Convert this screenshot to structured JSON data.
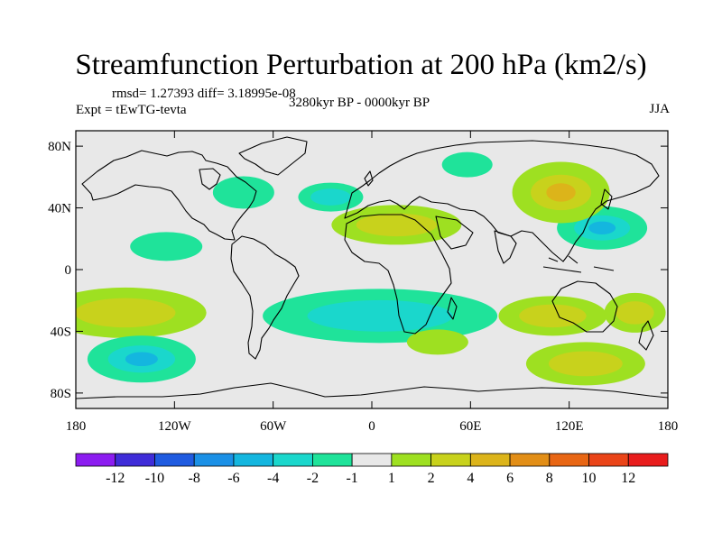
{
  "chart_data": {
    "type": "heatmap",
    "title": "Streamfunction Perturbation at 200 hPa (km2/s)",
    "stats_text": "rmsd= 1.27393  diff= 3.18995e-08",
    "left_label": "Expt = tEwTG-tevta",
    "center_label": "3280kyr BP - 0000kyr BP",
    "right_label": "JJA",
    "xlim": [
      -180,
      180
    ],
    "ylim": [
      -90,
      90
    ],
    "x_ticks": [
      {
        "value": -180,
        "label": "180"
      },
      {
        "value": -120,
        "label": "120W"
      },
      {
        "value": -60,
        "label": "60W"
      },
      {
        "value": 0,
        "label": "0"
      },
      {
        "value": 60,
        "label": "60E"
      },
      {
        "value": 120,
        "label": "120E"
      },
      {
        "value": 180,
        "label": "180"
      }
    ],
    "y_ticks": [
      {
        "value": 80,
        "label": "80N"
      },
      {
        "value": 40,
        "label": "40N"
      },
      {
        "value": 0,
        "label": "0"
      },
      {
        "value": -40,
        "label": "40S"
      },
      {
        "value": -80,
        "label": "80S"
      }
    ],
    "colorbar": {
      "labels": [
        "-12",
        "-10",
        "-8",
        "-6",
        "-4",
        "-2",
        "-1",
        "1",
        "2",
        "4",
        "6",
        "8",
        "10",
        "12"
      ],
      "colors": [
        "#8c1cf0",
        "#3f2cd8",
        "#1f5be0",
        "#1a90e6",
        "#14b6df",
        "#1ad7cc",
        "#1fe39a",
        "#e8e8e8",
        "#9ee021",
        "#c8d21c",
        "#dcb41a",
        "#e28e16",
        "#e86614",
        "#ea4418",
        "#e81c1c"
      ]
    },
    "anomalies": [
      {
        "lon": -78,
        "lat": 50,
        "value": -1.5
      },
      {
        "lon": -125,
        "lat": 15,
        "value": -1.5
      },
      {
        "lon": -25,
        "lat": 47,
        "value": -2
      },
      {
        "lon": 58,
        "lat": 68,
        "value": -1.5
      },
      {
        "lon": 140,
        "lat": 27,
        "value": -3
      },
      {
        "lon": 15,
        "lat": 29,
        "value": 2
      },
      {
        "lon": 115,
        "lat": 50,
        "value": 3
      },
      {
        "lon": -150,
        "lat": -28,
        "value": 2
      },
      {
        "lon": -140,
        "lat": -58,
        "value": -3
      },
      {
        "lon": 5,
        "lat": -30,
        "value": -2.5
      },
      {
        "lon": 40,
        "lat": -47,
        "value": 1.5
      },
      {
        "lon": 110,
        "lat": -30,
        "value": 2
      },
      {
        "lon": 160,
        "lat": -28,
        "value": 2
      },
      {
        "lon": 130,
        "lat": -61,
        "value": 2
      }
    ]
  }
}
